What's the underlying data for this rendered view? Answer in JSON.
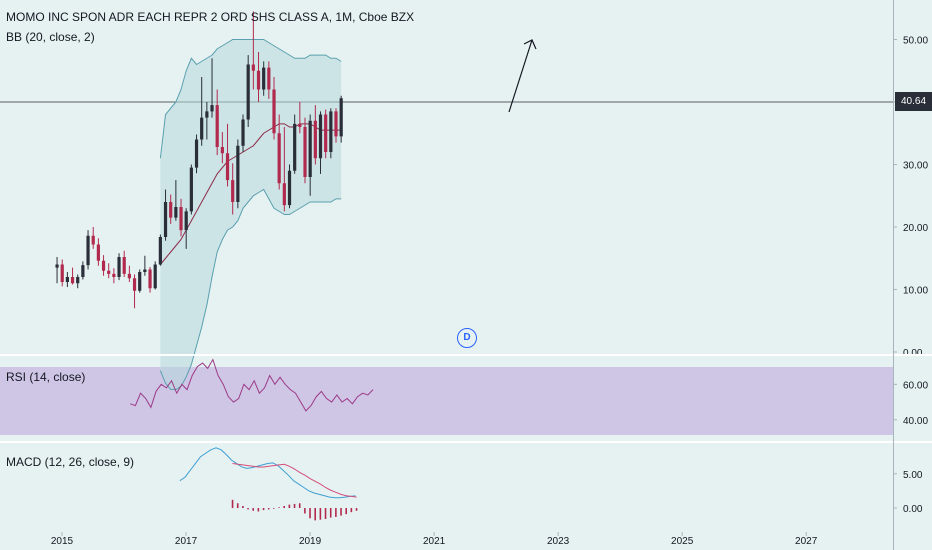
{
  "header": {
    "title": "MOMO INC SPON ADR EACH REPR 2 ORD SHS CLASS A, 1M, Cboe BZX",
    "bb_label": "BB (20, close, 2)",
    "rsi_label": "RSI (14, close)",
    "macd_label": "MACD (12, 26, close, 9)"
  },
  "price_badge": "40.64",
  "marker_label": "D",
  "colors": {
    "background": "#e6f2f1",
    "up_candle": "#2a2e39",
    "down_candle": "#b2294e",
    "bb_band": "#5aa0b0",
    "bb_basis": "#8e2a4a",
    "rsi_line": "#9c3a86",
    "rsi_band_fill": "#cfc6e6",
    "macd_line": "#3e9fd3",
    "signal_line": "#d64d7a",
    "histogram": "#b2294e",
    "arrow": "#131722"
  },
  "chart_data": [
    {
      "type": "candlestick",
      "title": "MOMO INC SPON ADR EACH REPR 2 ORD SHS CLASS A, 1M, Cboe BZX",
      "x_ticks": [
        "2015",
        "2017",
        "2019",
        "2021",
        "2023",
        "2025",
        "2027"
      ],
      "x_range": [
        2014.0,
        2028.4
      ],
      "ylim": [
        0,
        56
      ],
      "y_ticks": [
        "0.00",
        "10.00",
        "20.00",
        "30.00",
        "40.00",
        "50.00"
      ],
      "last_price": 40.64,
      "start": 2014.92,
      "step": 0.0833,
      "ohlc": [
        [
          13.5,
          15.2,
          11.0,
          14.0
        ],
        [
          14.0,
          14.8,
          10.5,
          11.2
        ],
        [
          11.2,
          12.8,
          10.4,
          12.0
        ],
        [
          12.0,
          13.5,
          10.8,
          11.0
        ],
        [
          11.0,
          12.4,
          10.2,
          12.0
        ],
        [
          12.0,
          14.5,
          11.6,
          13.9
        ],
        [
          13.9,
          19.5,
          13.2,
          18.6
        ],
        [
          18.6,
          20.0,
          16.5,
          17.2
        ],
        [
          17.2,
          18.2,
          13.8,
          14.6
        ],
        [
          14.6,
          15.5,
          12.2,
          13.0
        ],
        [
          13.0,
          14.2,
          11.8,
          12.5
        ],
        [
          12.5,
          13.4,
          11.0,
          12.0
        ],
        [
          12.0,
          15.8,
          11.5,
          15.2
        ],
        [
          15.2,
          16.2,
          12.0,
          12.5
        ],
        [
          12.5,
          13.8,
          11.2,
          11.8
        ],
        [
          11.8,
          12.4,
          7.0,
          9.8
        ],
        [
          9.8,
          13.2,
          9.5,
          12.8
        ],
        [
          12.8,
          15.4,
          12.2,
          13.2
        ],
        [
          13.2,
          13.6,
          9.5,
          10.2
        ],
        [
          10.2,
          14.5,
          10.0,
          14.0
        ],
        [
          14.0,
          18.8,
          13.8,
          18.4
        ],
        [
          18.4,
          26.0,
          17.8,
          24.0
        ],
        [
          24.0,
          25.2,
          20.5,
          21.5
        ],
        [
          21.5,
          27.5,
          21.0,
          23.2
        ],
        [
          23.2,
          24.5,
          18.5,
          19.5
        ],
        [
          19.5,
          23.0,
          16.5,
          22.5
        ],
        [
          22.5,
          30.0,
          22.0,
          29.5
        ],
        [
          29.5,
          34.8,
          28.6,
          34.0
        ],
        [
          34.0,
          44.0,
          33.0,
          37.5
        ],
        [
          37.5,
          40.0,
          34.0,
          38.5
        ],
        [
          38.5,
          47.0,
          37.5,
          39.5
        ],
        [
          39.5,
          42.0,
          31.5,
          32.8
        ],
        [
          32.8,
          35.2,
          30.2,
          31.8
        ],
        [
          31.8,
          36.5,
          26.5,
          27.5
        ],
        [
          27.5,
          30.2,
          22.0,
          24.0
        ],
        [
          24.0,
          34.0,
          23.0,
          33.0
        ],
        [
          33.0,
          38.0,
          32.0,
          37.2
        ],
        [
          37.2,
          47.5,
          36.0,
          46.0
        ],
        [
          46.0,
          54.5,
          42.0,
          45.0
        ],
        [
          45.0,
          48.0,
          40.0,
          42.0
        ],
        [
          42.0,
          46.5,
          41.0,
          45.5
        ],
        [
          45.5,
          46.5,
          40.5,
          42.0
        ],
        [
          42.0,
          44.0,
          34.0,
          35.0
        ],
        [
          35.0,
          38.0,
          26.0,
          27.0
        ],
        [
          27.0,
          36.0,
          22.5,
          23.5
        ],
        [
          23.5,
          30.0,
          23.0,
          29.0
        ],
        [
          29.0,
          38.0,
          28.5,
          36.5
        ],
        [
          36.5,
          40.0,
          35.0,
          36.0
        ],
        [
          36.0,
          37.5,
          27.0,
          28.0
        ],
        [
          28.0,
          38.0,
          25.0,
          37.0
        ],
        [
          37.0,
          39.5,
          30.0,
          31.0
        ],
        [
          31.0,
          38.5,
          28.5,
          38.0
        ],
        [
          38.0,
          38.8,
          31.0,
          32.0
        ],
        [
          32.0,
          39.0,
          31.0,
          38.5
        ],
        [
          38.5,
          39.0,
          33.5,
          34.5
        ],
        [
          34.5,
          41.0,
          33.5,
          40.6
        ]
      ],
      "bollinger": {
        "upper": [
          null,
          null,
          null,
          null,
          null,
          null,
          null,
          null,
          null,
          null,
          null,
          null,
          null,
          null,
          null,
          null,
          null,
          null,
          null,
          null,
          31.0,
          38.0,
          39.0,
          40.0,
          42.0,
          45.0,
          47.0,
          46.0,
          46.5,
          47.0,
          47.5,
          48.5,
          49.0,
          49.5,
          50.0,
          50.0,
          50.0,
          50.0,
          50.0,
          50.0,
          50.0,
          49.5,
          49.0,
          48.5,
          48.0,
          47.5,
          47.0,
          47.0,
          47.0,
          47.5,
          47.5,
          47.5,
          47.5,
          47.0,
          47.0,
          46.5
        ],
        "basis": [
          null,
          null,
          null,
          null,
          null,
          null,
          null,
          null,
          null,
          null,
          null,
          null,
          null,
          null,
          null,
          null,
          null,
          null,
          null,
          null,
          14.0,
          15.0,
          16.0,
          17.0,
          18.0,
          19.5,
          21.0,
          22.5,
          24.0,
          25.5,
          27.0,
          28.5,
          29.5,
          30.5,
          31.0,
          31.5,
          32.0,
          32.5,
          33.0,
          34.0,
          35.0,
          35.5,
          36.0,
          36.5,
          36.5,
          36.0,
          36.0,
          36.5,
          36.5,
          36.5,
          36.0,
          35.5,
          35.5,
          35.5,
          35.5,
          35.5
        ],
        "lower": [
          null,
          null,
          null,
          null,
          null,
          null,
          null,
          null,
          null,
          null,
          null,
          null,
          null,
          null,
          null,
          null,
          null,
          null,
          null,
          null,
          -3.0,
          -5.0,
          -6.0,
          -6.0,
          -5.5,
          -4.0,
          -2.0,
          1.0,
          4.0,
          7.5,
          12.0,
          16.0,
          18.0,
          19.5,
          20.0,
          21.0,
          23.0,
          24.0,
          25.0,
          25.5,
          26.0,
          24.5,
          23.0,
          22.5,
          22.0,
          22.0,
          22.5,
          23.0,
          23.5,
          24.0,
          24.0,
          24.0,
          24.0,
          24.0,
          24.5,
          24.5
        ]
      }
    },
    {
      "type": "line",
      "title": "RSI (14, close)",
      "ylim": [
        28,
        76
      ],
      "y_ticks": [
        "40.00",
        "60.00"
      ],
      "band": [
        30,
        70
      ],
      "start": 2016.1,
      "step": 0.0833,
      "values": [
        49,
        48,
        55,
        52,
        47,
        56,
        60,
        58,
        62,
        55,
        60,
        57,
        65,
        70,
        72,
        69,
        74,
        65,
        60,
        53,
        50,
        52,
        60,
        57,
        62,
        55,
        58,
        65,
        60,
        64,
        60,
        57,
        55,
        50,
        45,
        48,
        53,
        56,
        52,
        50,
        54,
        50,
        52,
        49,
        53,
        55,
        54,
        57
      ]
    },
    {
      "type": "line",
      "title": "MACD (12, 26, close, 9)",
      "ylim": [
        -3.5,
        9.5
      ],
      "y_ticks": [
        "0.00",
        "5.00"
      ],
      "series": [
        {
          "start": 2016.9,
          "step": 0.0833,
          "values": [
            4.0,
            4.5,
            5.5,
            6.5,
            7.5,
            8.0,
            8.5,
            8.8,
            8.5,
            7.8,
            7.0,
            6.5,
            6.0,
            5.8,
            5.9,
            6.1,
            6.3,
            6.5,
            6.6,
            6.2,
            5.5,
            4.8,
            4.0,
            3.5,
            3.0,
            2.5,
            2.2,
            2.0,
            1.8,
            1.6,
            1.5,
            1.5,
            1.6,
            1.7,
            1.8
          ]
        },
        {
          "start": 2017.75,
          "step": 0.0833,
          "values": [
            6.5,
            6.4,
            6.3,
            6.2,
            6.1,
            6.0,
            6.0,
            6.1,
            6.2,
            6.3,
            6.4,
            6.1,
            5.7,
            5.2,
            4.8,
            4.3,
            3.9,
            3.5,
            3.0,
            2.6,
            2.3,
            2.0,
            1.8,
            1.7,
            1.6
          ]
        }
      ],
      "histogram": {
        "start": 2017.75,
        "step": 0.0833,
        "values": [
          1.2,
          0.7,
          0.3,
          -0.2,
          -0.4,
          -0.5,
          -0.3,
          -0.2,
          -0.1,
          0.1,
          0.3,
          0.5,
          0.6,
          0.7,
          -0.8,
          -1.5,
          -1.8,
          -1.7,
          -1.6,
          -1.4,
          -1.3,
          -1.1,
          -0.9,
          -0.6,
          -0.4
        ]
      }
    }
  ]
}
